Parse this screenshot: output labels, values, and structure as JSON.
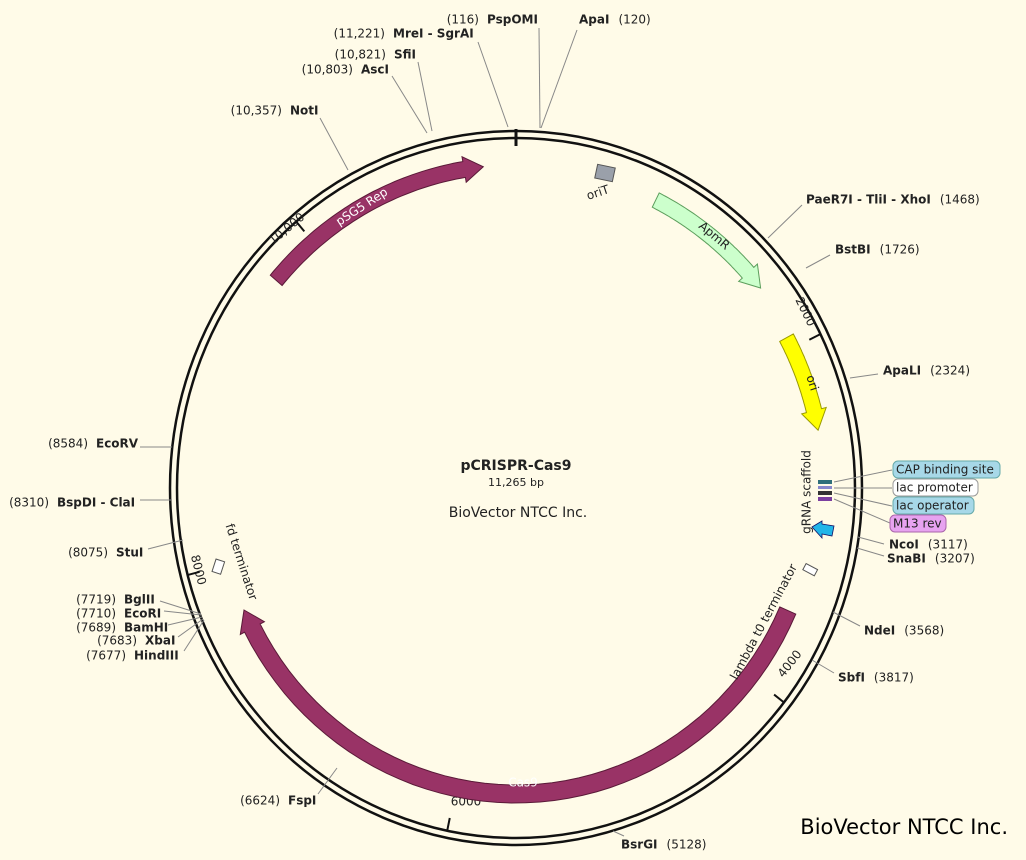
{
  "plasmid": {
    "name": "pCRISPR-Cas9",
    "size": "11,265 bp",
    "organization": "BioVector NTCC Inc."
  },
  "ruler": [
    "2000",
    "4000",
    "6000",
    "8000",
    "10,000"
  ],
  "features": [
    {
      "label": "pSG5 Rep"
    },
    {
      "label": "oriT"
    },
    {
      "label": "ApmR"
    },
    {
      "label": "ori"
    },
    {
      "label": "gRNA scaffold"
    },
    {
      "label": "CAP binding site"
    },
    {
      "label": "lac promoter"
    },
    {
      "label": "lac operator"
    },
    {
      "label": "M13 rev"
    },
    {
      "label": "lambda t0 terminator"
    },
    {
      "label": "Cas9"
    },
    {
      "label": "fd terminator"
    }
  ],
  "sites": [
    {
      "name": "PspOMI",
      "position": "(116)"
    },
    {
      "name": "ApaI",
      "position": "(120)"
    },
    {
      "name": "MreI - SgrAI",
      "position": "(11,221)"
    },
    {
      "name": "SfiI",
      "position": "(10,821)"
    },
    {
      "name": "AscI",
      "position": "(10,803)"
    },
    {
      "name": "NotI",
      "position": "(10,357)"
    },
    {
      "name": "PaeR7I - TliI - XhoI",
      "position": "(1468)"
    },
    {
      "name": "BstBI",
      "position": "(1726)"
    },
    {
      "name": "ApaLI",
      "position": "(2324)"
    },
    {
      "name": "NcoI",
      "position": "(3117)"
    },
    {
      "name": "SnaBI",
      "position": "(3207)"
    },
    {
      "name": "NdeI",
      "position": "(3568)"
    },
    {
      "name": "SbfI",
      "position": "(3817)"
    },
    {
      "name": "BsrGI",
      "position": "(5128)"
    },
    {
      "name": "FspI",
      "position": "(6624)"
    },
    {
      "name": "HindIII",
      "position": "(7677)"
    },
    {
      "name": "XbaI",
      "position": "(7683)"
    },
    {
      "name": "BamHI",
      "position": "(7689)"
    },
    {
      "name": "EcoRI",
      "position": "(7710)"
    },
    {
      "name": "BglII",
      "position": "(7719)"
    },
    {
      "name": "StuI",
      "position": "(8075)"
    },
    {
      "name": "BspDI - ClaI",
      "position": "(8310)"
    },
    {
      "name": "EcoRV",
      "position": "(8584)"
    }
  ],
  "watermark": "BioVector NTCC Inc."
}
